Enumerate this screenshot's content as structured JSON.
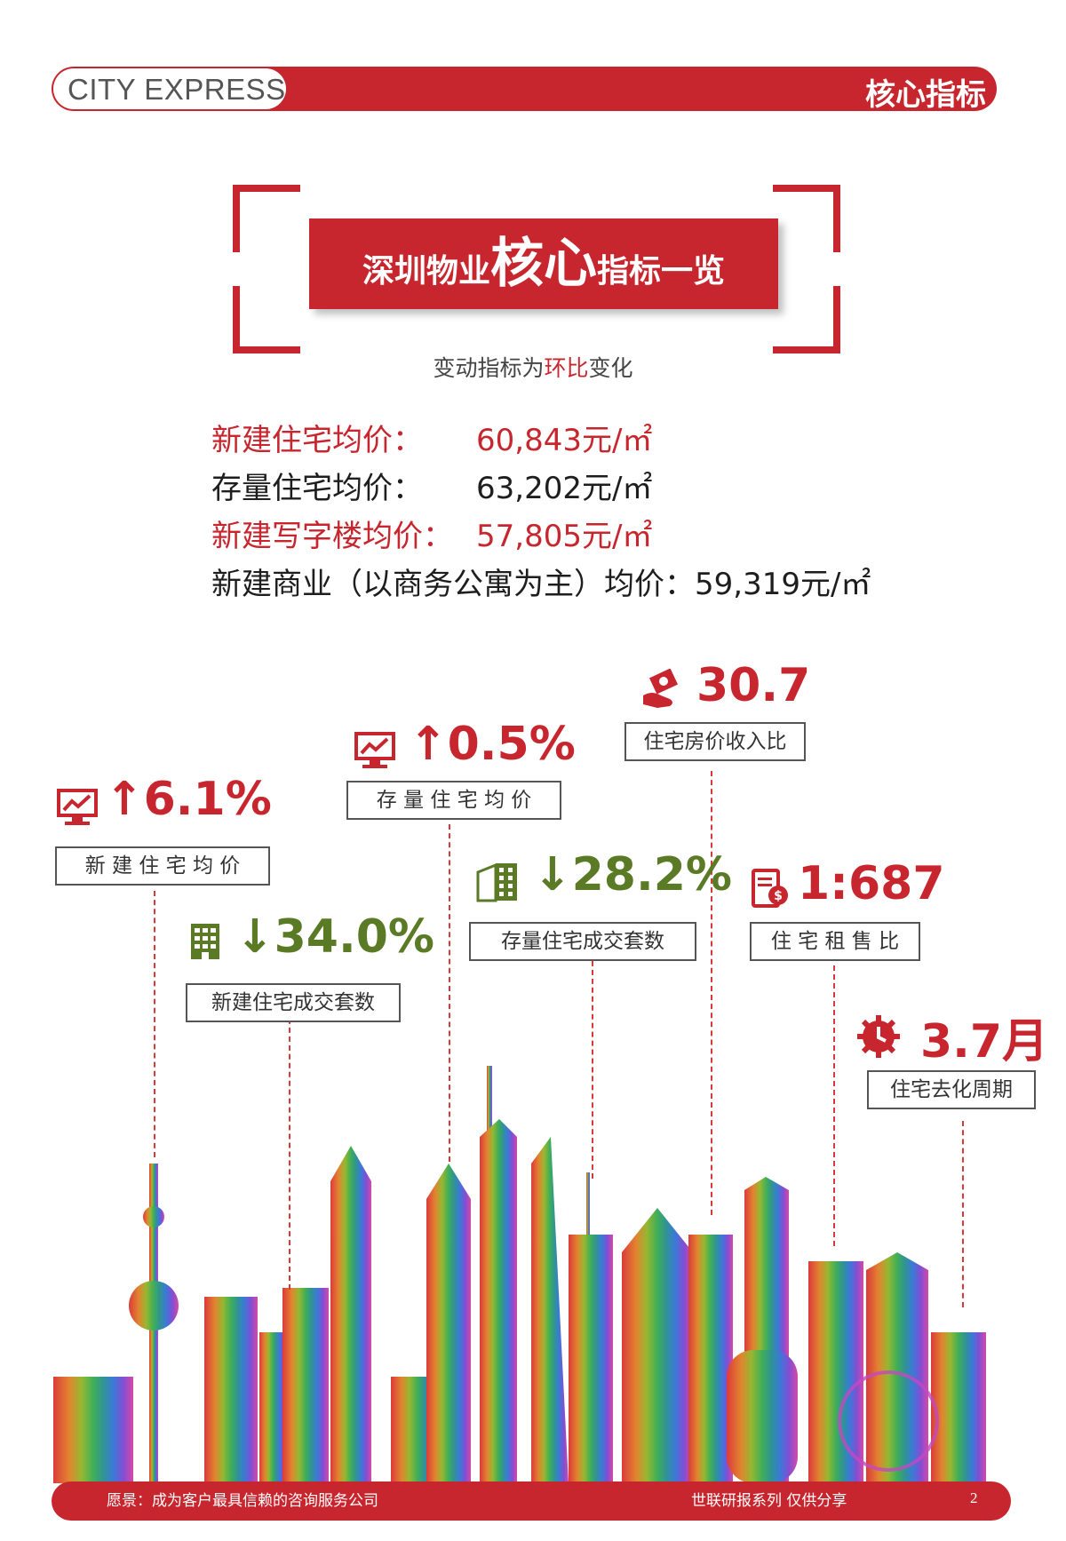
{
  "header": {
    "brand": "CITY EXPRESS",
    "title": "核心指标"
  },
  "title_box": {
    "part1": "深圳物业",
    "part2": "核心",
    "part3": "指标一览"
  },
  "subtitle": {
    "pre": "变动指标为",
    "highlight": "环比",
    "post": "变化"
  },
  "prices": [
    {
      "label": "新建住宅均价：",
      "value": "60,843元/㎡"
    },
    {
      "label": "存量住宅均价：",
      "value": "63,202元/㎡"
    },
    {
      "label": "新建写字楼均价：",
      "value": "57,805元/㎡"
    },
    {
      "label": "新建商业（以商务公寓为主）均价：",
      "value": "59,319元/㎡"
    }
  ],
  "indicators": {
    "new_price": {
      "arrow": "↑",
      "value": "6.1%",
      "label": "新 建 住 宅 均 价",
      "icon": "chart-monitor-icon",
      "color": "#c8262e"
    },
    "new_volume": {
      "arrow": "↓",
      "value": "34.0%",
      "label": "新建住宅成交套数",
      "icon": "building-icon",
      "color": "#5a7a25"
    },
    "stock_price": {
      "arrow": "↑",
      "value": "0.5%",
      "label": "存 量 住 宅 均 价",
      "icon": "chart-monitor-icon",
      "color": "#c8262e"
    },
    "stock_volume": {
      "arrow": "↓",
      "value": "28.2%",
      "label": "存量住宅成交套数",
      "icon": "buildings-icon",
      "color": "#5a7a25"
    },
    "price_income": {
      "value": "30.7",
      "label": "住宅房价收入比",
      "icon": "money-hand-icon",
      "color": "#c8262e"
    },
    "rent_sale": {
      "value": "1:687",
      "label": "住 宅 租 售 比",
      "icon": "invoice-icon",
      "color": "#c8262e"
    },
    "destock": {
      "value": "3.7月",
      "label": "住宅去化周期",
      "icon": "clock-gear-icon",
      "color": "#c8262e"
    }
  },
  "footer": {
    "left": "愿景：成为客户最具信赖的咨询服务公司",
    "right": "世联研报系列 仅供分享",
    "page": "2"
  }
}
